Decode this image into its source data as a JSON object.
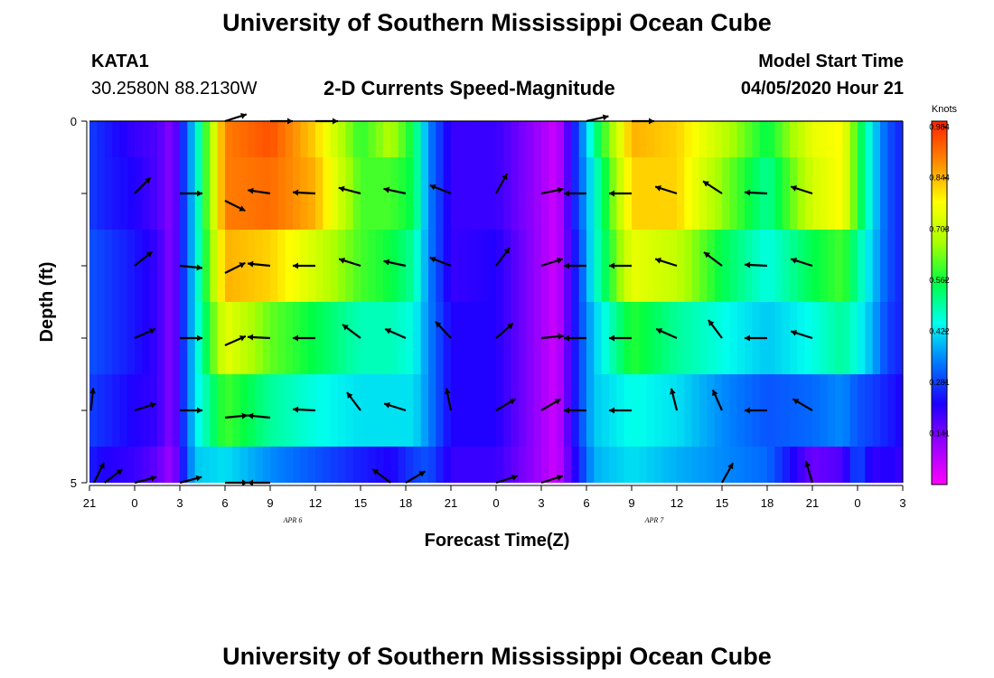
{
  "header": {
    "title_top": "University of Southern Mississippi Ocean Cube",
    "title_bottom": "University of Southern Mississippi Ocean Cube",
    "station_id": "KATA1",
    "station_coords": "30.2580N 88.2130W",
    "chart_subtitle": "2-D Currents Speed-Magnitude",
    "model_start_label": "Model Start Time",
    "model_start_value": "04/05/2020 Hour 21"
  },
  "colors": {
    "scale": [
      "#ff00ff",
      "#9900ff",
      "#1e00ff",
      "#0077ff",
      "#00ffee",
      "#00ff44",
      "#aaff00",
      "#ffff00",
      "#ff8800",
      "#ff2200"
    ],
    "arrow": "#000000",
    "axis": "#000000"
  },
  "chart_data": {
    "type": "heatmap",
    "title": "2-D Currents Speed-Magnitude",
    "xlabel": "Forecast Time(Z)",
    "ylabel": "Depth (ft)",
    "x_tick_labels": [
      "21",
      "0",
      "3",
      "6",
      "9",
      "12",
      "15",
      "18",
      "21",
      "0",
      "3",
      "6",
      "9",
      "12",
      "15",
      "18",
      "21",
      "0",
      "3"
    ],
    "x_range_hours": [
      0,
      54
    ],
    "date_labels": [
      {
        "label": "APR 6",
        "hour": 13.5
      },
      {
        "label": "APR 7",
        "hour": 37.5
      }
    ],
    "y_tick_labels": [
      {
        "label": "0",
        "depth": 0
      },
      {
        "label": "5",
        "depth": 5
      }
    ],
    "ylim": [
      0,
      5
    ],
    "colorbar": {
      "label": "Knots",
      "ticks": [
        "0.984",
        "0.844",
        "0.703",
        "0.562",
        "0.422",
        "0.281",
        "0.141"
      ],
      "tick_values": [
        0.984,
        0.844,
        0.703,
        0.562,
        0.422,
        0.281,
        0.141
      ],
      "range": [
        0.0,
        1.0
      ]
    },
    "depth_bin_centers": [
      0.5,
      1.5,
      2.5,
      3.5,
      4.5
    ],
    "key_hours": [
      0,
      1,
      3,
      4.5,
      5.5,
      7,
      9,
      12,
      15,
      18,
      20,
      21.5,
      22.5,
      24,
      27,
      30,
      31,
      32.5,
      33.5,
      36,
      39,
      42,
      45,
      48,
      50,
      51,
      52,
      53,
      54
    ],
    "speed_rows": [
      [
        0.28,
        0.25,
        0.2,
        0.18,
        0.12,
        0.42,
        0.9,
        0.95,
        0.82,
        0.58,
        0.68,
        0.55,
        0.35,
        0.2,
        0.2,
        0.1,
        0.05,
        0.3,
        0.5,
        0.85,
        0.82,
        0.7,
        0.55,
        0.75,
        0.78,
        0.58,
        0.42,
        0.3,
        0.25
      ],
      [
        0.28,
        0.25,
        0.22,
        0.18,
        0.12,
        0.42,
        0.9,
        0.92,
        0.85,
        0.6,
        0.6,
        0.55,
        0.35,
        0.2,
        0.2,
        0.1,
        0.05,
        0.3,
        0.45,
        0.82,
        0.82,
        0.65,
        0.5,
        0.72,
        0.78,
        0.58,
        0.42,
        0.3,
        0.25
      ],
      [
        0.3,
        0.28,
        0.24,
        0.2,
        0.12,
        0.42,
        0.85,
        0.82,
        0.72,
        0.6,
        0.56,
        0.5,
        0.35,
        0.2,
        0.22,
        0.1,
        0.05,
        0.28,
        0.45,
        0.75,
        0.7,
        0.55,
        0.45,
        0.55,
        0.6,
        0.5,
        0.4,
        0.3,
        0.25
      ],
      [
        0.3,
        0.28,
        0.24,
        0.2,
        0.12,
        0.42,
        0.75,
        0.62,
        0.55,
        0.48,
        0.48,
        0.45,
        0.35,
        0.22,
        0.22,
        0.1,
        0.05,
        0.28,
        0.4,
        0.58,
        0.5,
        0.45,
        0.4,
        0.45,
        0.5,
        0.45,
        0.38,
        0.28,
        0.25
      ],
      [
        0.28,
        0.26,
        0.22,
        0.2,
        0.12,
        0.42,
        0.6,
        0.5,
        0.45,
        0.42,
        0.42,
        0.42,
        0.35,
        0.22,
        0.22,
        0.1,
        0.05,
        0.28,
        0.4,
        0.45,
        0.42,
        0.35,
        0.3,
        0.32,
        0.35,
        0.3,
        0.28,
        0.25,
        0.22
      ],
      [
        0.25,
        0.22,
        0.2,
        0.16,
        0.1,
        0.4,
        0.42,
        0.35,
        0.3,
        0.25,
        0.22,
        0.28,
        0.3,
        0.2,
        0.2,
        0.1,
        0.05,
        0.25,
        0.38,
        0.42,
        0.38,
        0.35,
        0.32,
        0.15,
        0.18,
        0.3,
        0.2,
        0.22,
        0.2
      ]
    ],
    "vectors": [
      {
        "hour": 0.3,
        "depth": 5.0,
        "u": 0.5,
        "v": 1
      },
      {
        "hour": 3,
        "depth": 1.0,
        "u": 0.7,
        "v": 0.7
      },
      {
        "hour": 6,
        "depth": 1.0,
        "u": 1,
        "v": 0
      },
      {
        "hour": 9,
        "depth": 1.1,
        "u": 0.9,
        "v": -0.45
      },
      {
        "hour": 3,
        "depth": 2.0,
        "u": 0.75,
        "v": 0.6
      },
      {
        "hour": 6,
        "depth": 2.0,
        "u": 1,
        "v": -0.1
      },
      {
        "hour": 9,
        "depth": 2.1,
        "u": 0.9,
        "v": 0.45
      },
      {
        "hour": 3,
        "depth": 3.0,
        "u": 0.9,
        "v": 0.4
      },
      {
        "hour": 6,
        "depth": 3.0,
        "u": 1,
        "v": 0
      },
      {
        "hour": 9,
        "depth": 3.1,
        "u": 0.9,
        "v": 0.4
      },
      {
        "hour": 0.1,
        "depth": 4.0,
        "u": 0.1,
        "v": 1
      },
      {
        "hour": 3,
        "depth": 4.0,
        "u": 0.95,
        "v": 0.3
      },
      {
        "hour": 6,
        "depth": 4.0,
        "u": 1,
        "v": 0
      },
      {
        "hour": 9,
        "depth": 4.1,
        "u": 1,
        "v": 0.1
      },
      {
        "hour": 1,
        "depth": 5.0,
        "u": 0.8,
        "v": 0.6
      },
      {
        "hour": 3,
        "depth": 5.0,
        "u": 0.95,
        "v": 0.25
      },
      {
        "hour": 6,
        "depth": 5.0,
        "u": 0.95,
        "v": 0.25
      },
      {
        "hour": 9,
        "depth": 5.0,
        "u": 1,
        "v": 0
      },
      {
        "hour": 9,
        "depth": 0.0,
        "u": 0.95,
        "v": 0.3
      },
      {
        "hour": 12,
        "depth": 0.0,
        "u": 1,
        "v": 0
      },
      {
        "hour": 15,
        "depth": 0.0,
        "u": 1,
        "v": 0
      },
      {
        "hour": 12,
        "depth": 1.0,
        "u": -1,
        "v": 0.15
      },
      {
        "hour": 15,
        "depth": 1.0,
        "u": -1,
        "v": 0.05
      },
      {
        "hour": 18,
        "depth": 1.0,
        "u": -0.95,
        "v": 0.25
      },
      {
        "hour": 21,
        "depth": 1.0,
        "u": -0.95,
        "v": 0.2
      },
      {
        "hour": 24,
        "depth": 1.0,
        "u": -0.9,
        "v": 0.35
      },
      {
        "hour": 12,
        "depth": 2.0,
        "u": -1,
        "v": 0.1
      },
      {
        "hour": 15,
        "depth": 2.0,
        "u": -1,
        "v": 0
      },
      {
        "hour": 18,
        "depth": 2.0,
        "u": -0.95,
        "v": 0.3
      },
      {
        "hour": 21,
        "depth": 2.0,
        "u": -0.95,
        "v": 0.2
      },
      {
        "hour": 24,
        "depth": 2.0,
        "u": -0.9,
        "v": 0.35
      },
      {
        "hour": 12,
        "depth": 3.0,
        "u": -1,
        "v": 0.05
      },
      {
        "hour": 15,
        "depth": 3.0,
        "u": -1,
        "v": 0
      },
      {
        "hour": 18,
        "depth": 3.0,
        "u": -0.8,
        "v": 0.6
      },
      {
        "hour": 21,
        "depth": 3.0,
        "u": -0.9,
        "v": 0.4
      },
      {
        "hour": 24,
        "depth": 3.0,
        "u": -0.7,
        "v": 0.75
      },
      {
        "hour": 12,
        "depth": 4.1,
        "u": -1,
        "v": 0.1
      },
      {
        "hour": 15,
        "depth": 4.0,
        "u": -1,
        "v": 0.05
      },
      {
        "hour": 18,
        "depth": 4.0,
        "u": -0.6,
        "v": 0.8
      },
      {
        "hour": 21,
        "depth": 4.0,
        "u": -0.95,
        "v": 0.3
      },
      {
        "hour": 24,
        "depth": 4.0,
        "u": -0.2,
        "v": 1
      },
      {
        "hour": 12,
        "depth": 5.0,
        "u": -1,
        "v": 0
      },
      {
        "hour": 20,
        "depth": 5.0,
        "u": -0.8,
        "v": 0.6
      },
      {
        "hour": 21,
        "depth": 5.0,
        "u": 0.85,
        "v": 0.5
      },
      {
        "hour": 27,
        "depth": 5.0,
        "u": 0.95,
        "v": 0.3
      },
      {
        "hour": 27,
        "depth": 1.0,
        "u": 0.5,
        "v": 0.9
      },
      {
        "hour": 30,
        "depth": 1.0,
        "u": 1,
        "v": 0.2
      },
      {
        "hour": 30,
        "depth": 2.0,
        "u": 0.95,
        "v": 0.3
      },
      {
        "hour": 27,
        "depth": 2.0,
        "u": 0.6,
        "v": 0.8
      },
      {
        "hour": 27,
        "depth": 3.0,
        "u": 0.75,
        "v": 0.65
      },
      {
        "hour": 30,
        "depth": 3.0,
        "u": 1,
        "v": 0.1
      },
      {
        "hour": 27,
        "depth": 4.0,
        "u": 0.85,
        "v": 0.5
      },
      {
        "hour": 30,
        "depth": 4.0,
        "u": 0.85,
        "v": 0.5
      },
      {
        "hour": 30,
        "depth": 5.0,
        "u": 0.95,
        "v": 0.3
      },
      {
        "hour": 33,
        "depth": 0.0,
        "u": 0.9,
        "v": 0.2
      },
      {
        "hour": 36,
        "depth": 0.0,
        "u": 1,
        "v": 0
      },
      {
        "hour": 33,
        "depth": 1.0,
        "u": -1,
        "v": 0
      },
      {
        "hour": 36,
        "depth": 1.0,
        "u": -1,
        "v": 0
      },
      {
        "hour": 39,
        "depth": 1.0,
        "u": -0.95,
        "v": 0.3
      },
      {
        "hour": 42,
        "depth": 1.0,
        "u": -0.85,
        "v": 0.55
      },
      {
        "hour": 45,
        "depth": 1.0,
        "u": -1,
        "v": 0.05
      },
      {
        "hour": 48,
        "depth": 1.0,
        "u": -0.95,
        "v": 0.3
      },
      {
        "hour": 33,
        "depth": 2.0,
        "u": -1,
        "v": 0
      },
      {
        "hour": 36,
        "depth": 2.0,
        "u": -1,
        "v": 0
      },
      {
        "hour": 39,
        "depth": 2.0,
        "u": -0.95,
        "v": 0.3
      },
      {
        "hour": 42,
        "depth": 2.0,
        "u": -0.8,
        "v": 0.6
      },
      {
        "hour": 45,
        "depth": 2.0,
        "u": -1,
        "v": 0.05
      },
      {
        "hour": 48,
        "depth": 2.0,
        "u": -0.95,
        "v": 0.3
      },
      {
        "hour": 33,
        "depth": 3.0,
        "u": -1,
        "v": 0
      },
      {
        "hour": 36,
        "depth": 3.0,
        "u": -1,
        "v": 0
      },
      {
        "hour": 39,
        "depth": 3.0,
        "u": -0.9,
        "v": 0.4
      },
      {
        "hour": 42,
        "depth": 3.0,
        "u": -0.6,
        "v": 0.8
      },
      {
        "hour": 45,
        "depth": 3.0,
        "u": -1,
        "v": 0
      },
      {
        "hour": 48,
        "depth": 3.0,
        "u": -0.95,
        "v": 0.3
      },
      {
        "hour": 33,
        "depth": 4.0,
        "u": -1,
        "v": 0
      },
      {
        "hour": 36,
        "depth": 4.0,
        "u": -1,
        "v": 0
      },
      {
        "hour": 39,
        "depth": 4.0,
        "u": -0.25,
        "v": 1
      },
      {
        "hour": 42,
        "depth": 4.0,
        "u": -0.4,
        "v": 0.9
      },
      {
        "hour": 45,
        "depth": 4.0,
        "u": -1,
        "v": 0
      },
      {
        "hour": 48,
        "depth": 4.0,
        "u": -0.85,
        "v": 0.5
      },
      {
        "hour": 42,
        "depth": 5.0,
        "u": 0.5,
        "v": 0.9
      },
      {
        "hour": 48,
        "depth": 5.0,
        "u": -0.3,
        "v": 1
      }
    ]
  }
}
